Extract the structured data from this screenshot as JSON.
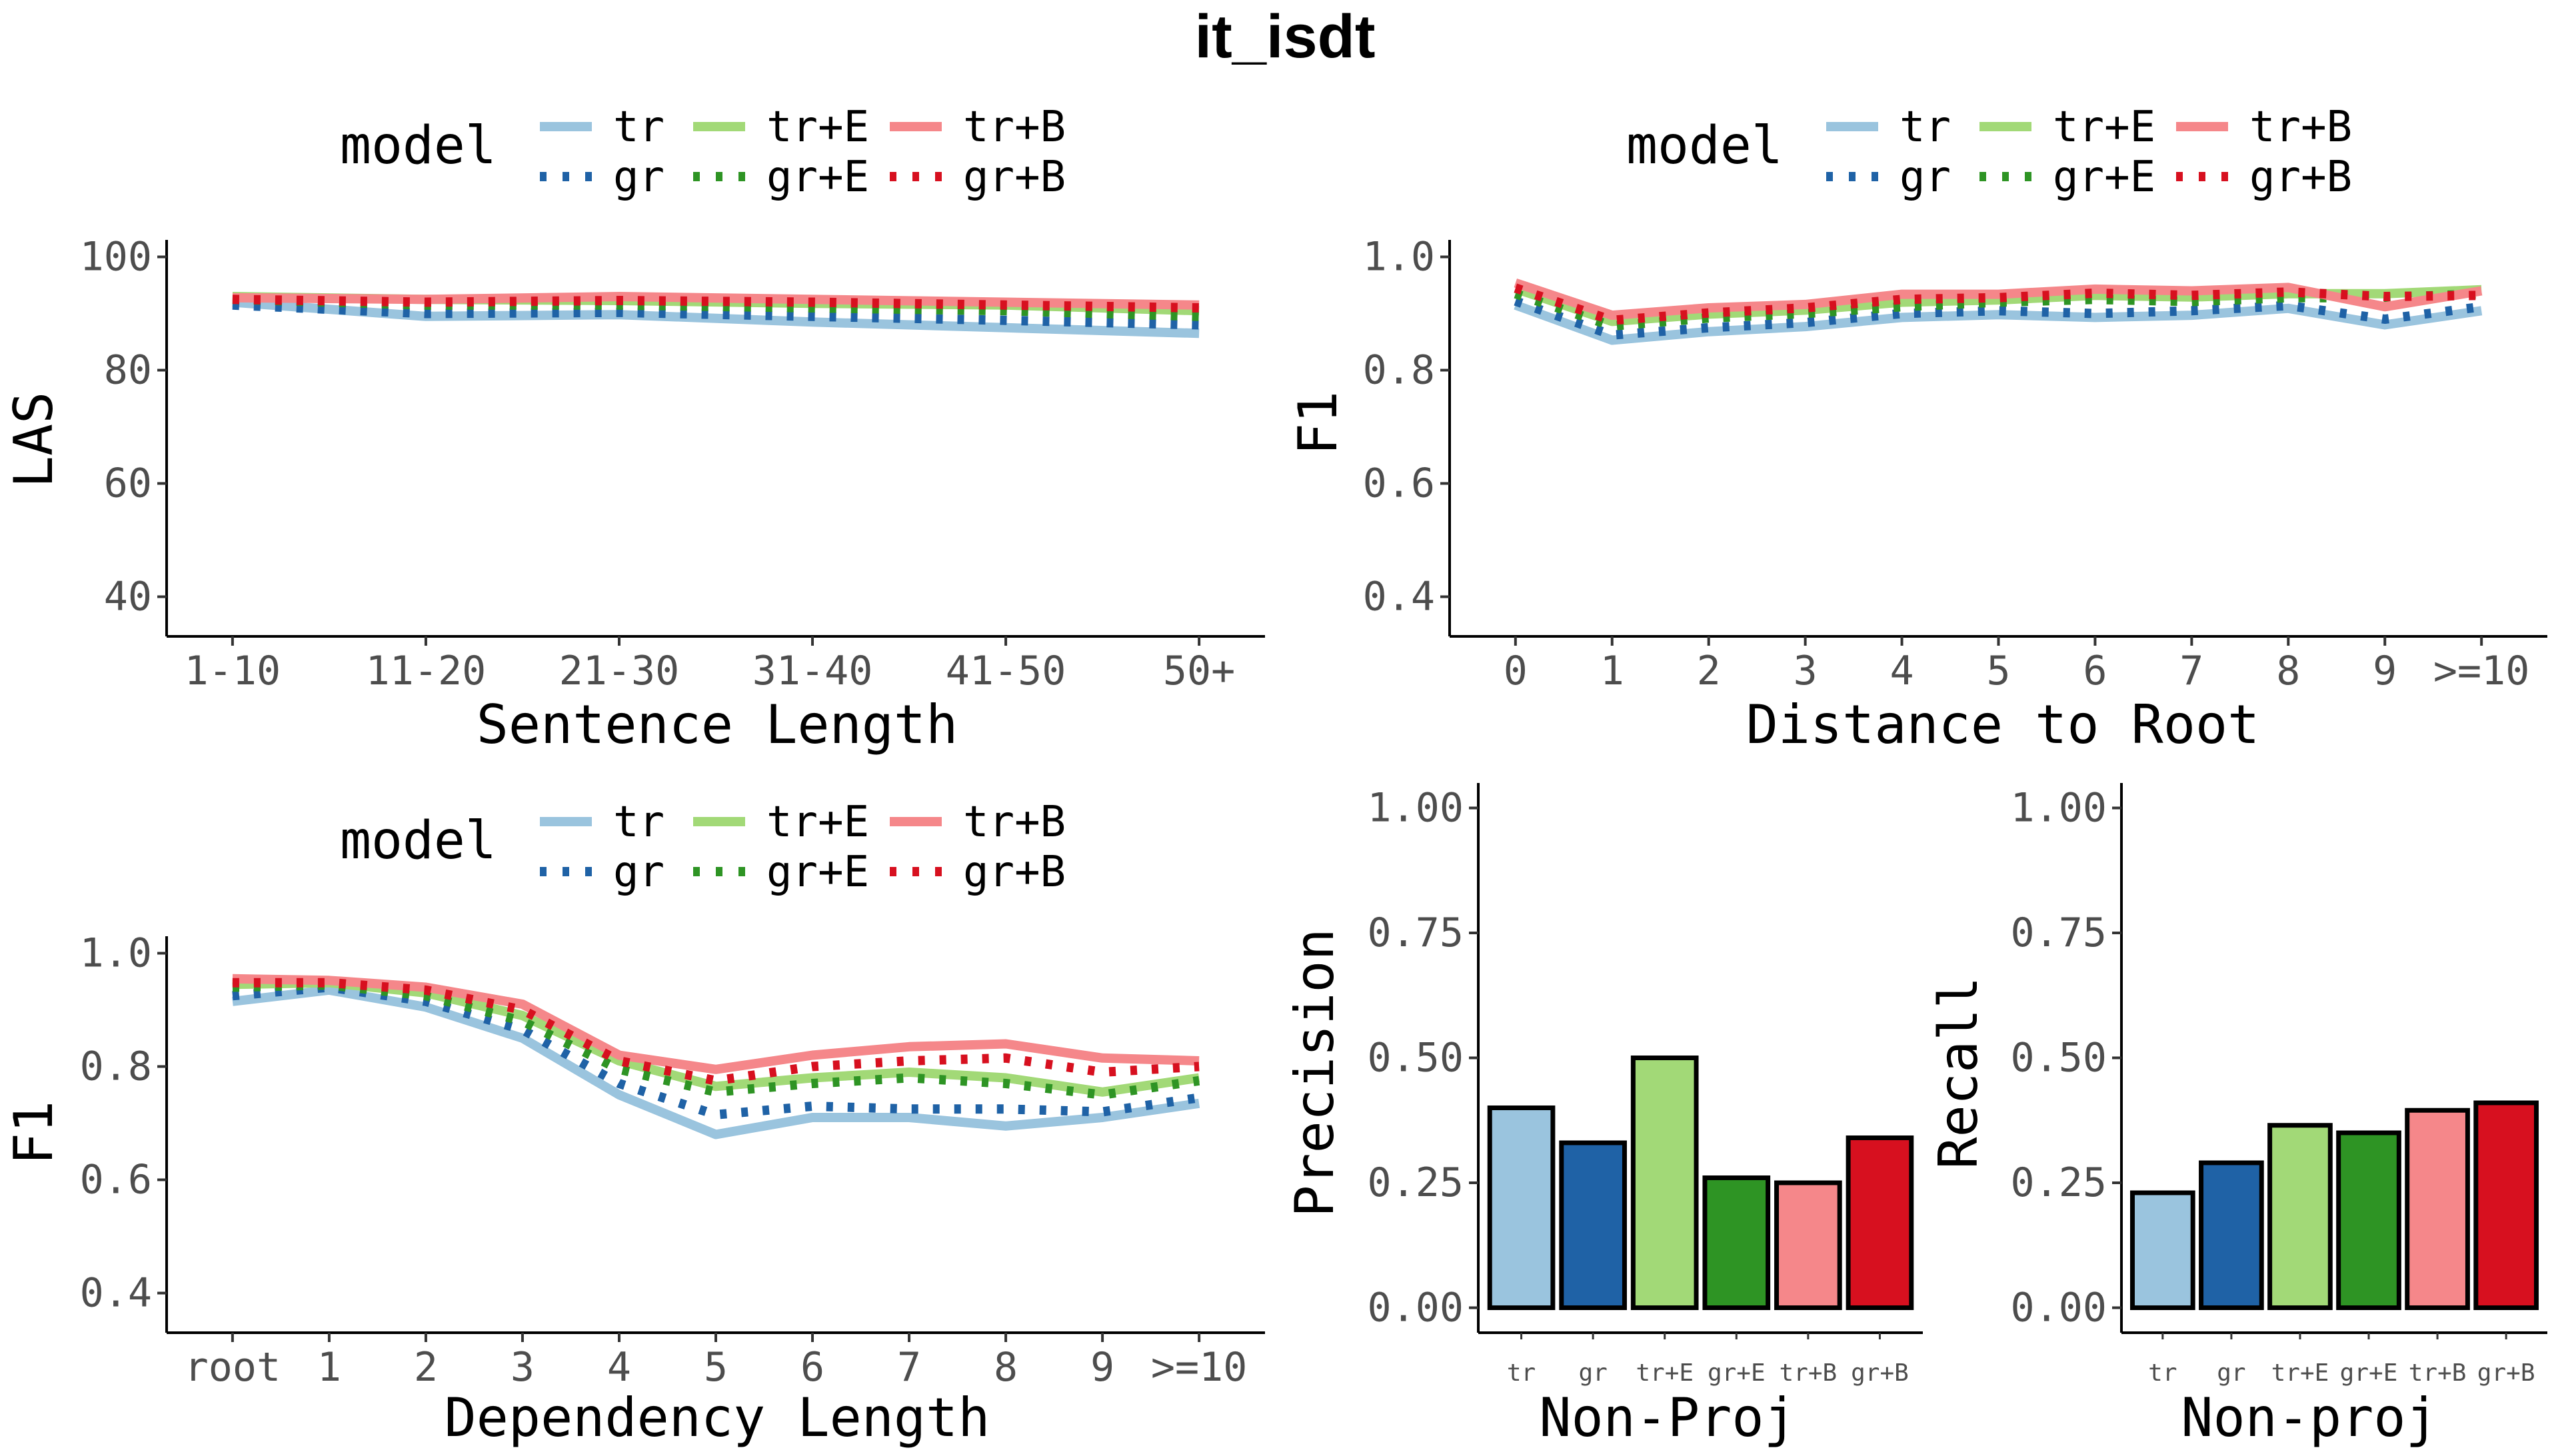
{
  "title": "it_isdt",
  "colors": {
    "tr": "#9ac4de",
    "gr": "#1f62a6",
    "tr+E": "#a2d977",
    "gr+E": "#2e9424",
    "tr+B": "#f5878a",
    "gr+B": "#d7101f"
  },
  "legend": {
    "title": "model",
    "entries": [
      {
        "key": "tr",
        "label": "tr",
        "dashed": false
      },
      {
        "key": "tr+E",
        "label": "tr+E",
        "dashed": false
      },
      {
        "key": "tr+B",
        "label": "tr+B",
        "dashed": false
      },
      {
        "key": "gr",
        "label": "gr",
        "dashed": true
      },
      {
        "key": "gr+E",
        "label": "gr+E",
        "dashed": true
      },
      {
        "key": "gr+B",
        "label": "gr+B",
        "dashed": true
      }
    ]
  },
  "chart_data": [
    {
      "id": "sentence-length",
      "type": "line",
      "xlabel": "Sentence Length",
      "ylabel": "LAS",
      "categories": [
        "1-10",
        "11-20",
        "21-30",
        "31-40",
        "41-50",
        "50+"
      ],
      "ylim": [
        33,
        103
      ],
      "yticks": [
        "40",
        "60",
        "80",
        "100"
      ],
      "ytick_values": [
        40,
        60,
        80,
        100
      ],
      "series": [
        {
          "name": "tr",
          "values": [
            92.0,
            89.5,
            89.8,
            88.5,
            87.5,
            86.5
          ]
        },
        {
          "name": "gr",
          "values": [
            91.5,
            90.0,
            90.2,
            89.5,
            88.8,
            88.0
          ]
        },
        {
          "name": "tr+E",
          "values": [
            93.0,
            92.5,
            92.3,
            91.8,
            91.5,
            90.5
          ]
        },
        {
          "name": "gr+E",
          "values": [
            92.5,
            91.5,
            91.5,
            91.0,
            90.5,
            89.5
          ]
        },
        {
          "name": "tr+B",
          "values": [
            92.8,
            92.5,
            93.0,
            92.5,
            92.0,
            91.5
          ]
        },
        {
          "name": "gr+B",
          "values": [
            92.5,
            92.0,
            92.3,
            92.0,
            91.5,
            91.0
          ]
        }
      ]
    },
    {
      "id": "distance-to-root",
      "type": "line",
      "xlabel": "Distance to Root",
      "ylabel": "F1",
      "categories": [
        "0",
        "1",
        "2",
        "3",
        "4",
        "5",
        "6",
        "7",
        "8",
        "9",
        ">=10"
      ],
      "ylim": [
        0.33,
        1.03
      ],
      "yticks": [
        "0.4",
        "0.6",
        "0.8",
        "1.0"
      ],
      "ytick_values": [
        0.4,
        0.6,
        0.8,
        1.0
      ],
      "series": [
        {
          "name": "tr",
          "values": [
            0.915,
            0.853,
            0.868,
            0.877,
            0.893,
            0.898,
            0.893,
            0.897,
            0.909,
            0.88,
            0.905
          ]
        },
        {
          "name": "gr",
          "values": [
            0.922,
            0.862,
            0.875,
            0.884,
            0.9,
            0.905,
            0.9,
            0.905,
            0.914,
            0.89,
            0.912
          ]
        },
        {
          "name": "tr+E",
          "values": [
            0.944,
            0.886,
            0.899,
            0.906,
            0.92,
            0.924,
            0.932,
            0.929,
            0.935,
            0.935,
            0.942
          ]
        },
        {
          "name": "gr+E",
          "values": [
            0.935,
            0.878,
            0.892,
            0.9,
            0.912,
            0.92,
            0.925,
            0.921,
            0.928,
            0.928,
            0.935
          ]
        },
        {
          "name": "tr+B",
          "values": [
            0.954,
            0.897,
            0.91,
            0.916,
            0.934,
            0.934,
            0.943,
            0.94,
            0.946,
            0.912,
            0.94
          ]
        },
        {
          "name": "gr+B",
          "values": [
            0.945,
            0.888,
            0.901,
            0.91,
            0.925,
            0.928,
            0.936,
            0.932,
            0.938,
            0.93,
            0.932
          ]
        }
      ]
    },
    {
      "id": "dependency-length",
      "type": "line",
      "xlabel": "Dependency Length",
      "ylabel": "F1",
      "categories": [
        "root",
        "1",
        "2",
        "3",
        "4",
        "5",
        "6",
        "7",
        "8",
        "9",
        ">=10"
      ],
      "ylim": [
        0.33,
        1.03
      ],
      "yticks": [
        "0.4",
        "0.6",
        "0.8",
        "1.0"
      ],
      "ytick_values": [
        0.4,
        0.6,
        0.8,
        1.0
      ],
      "series": [
        {
          "name": "tr",
          "values": [
            0.915,
            0.935,
            0.905,
            0.85,
            0.75,
            0.68,
            0.71,
            0.71,
            0.695,
            0.71,
            0.735
          ]
        },
        {
          "name": "gr",
          "values": [
            0.925,
            0.94,
            0.915,
            0.865,
            0.77,
            0.715,
            0.73,
            0.725,
            0.725,
            0.72,
            0.745
          ]
        },
        {
          "name": "tr+E",
          "values": [
            0.945,
            0.948,
            0.93,
            0.89,
            0.81,
            0.765,
            0.78,
            0.79,
            0.78,
            0.755,
            0.78
          ]
        },
        {
          "name": "gr+E",
          "values": [
            0.94,
            0.944,
            0.925,
            0.88,
            0.795,
            0.755,
            0.77,
            0.78,
            0.77,
            0.75,
            0.775
          ]
        },
        {
          "name": "tr+B",
          "values": [
            0.955,
            0.952,
            0.94,
            0.91,
            0.82,
            0.795,
            0.82,
            0.835,
            0.84,
            0.815,
            0.81
          ]
        },
        {
          "name": "gr+B",
          "values": [
            0.948,
            0.948,
            0.935,
            0.9,
            0.81,
            0.775,
            0.8,
            0.81,
            0.815,
            0.79,
            0.8
          ]
        }
      ]
    },
    {
      "id": "nonproj-precision",
      "type": "bar",
      "xlabel": "Non-Proj",
      "ylabel": "Precision",
      "categories": [
        "tr",
        "gr",
        "tr+E",
        "gr+E",
        "tr+B",
        "gr+B"
      ],
      "values": [
        0.4,
        0.33,
        0.5,
        0.26,
        0.25,
        0.34
      ],
      "ylim": [
        -0.05,
        1.05
      ],
      "yticks": [
        "0.00",
        "0.25",
        "0.50",
        "0.75",
        "1.00"
      ],
      "ytick_values": [
        0,
        0.25,
        0.5,
        0.75,
        1.0
      ]
    },
    {
      "id": "nonproj-recall",
      "type": "bar",
      "xlabel": "Non-proj",
      "ylabel": "Recall",
      "categories": [
        "tr",
        "gr",
        "tr+E",
        "gr+E",
        "tr+B",
        "gr+B"
      ],
      "values": [
        0.23,
        0.29,
        0.365,
        0.35,
        0.395,
        0.41
      ],
      "ylim": [
        -0.05,
        1.05
      ],
      "yticks": [
        "0.00",
        "0.25",
        "0.50",
        "0.75",
        "1.00"
      ],
      "ytick_values": [
        0,
        0.25,
        0.5,
        0.75,
        1.0
      ]
    }
  ]
}
